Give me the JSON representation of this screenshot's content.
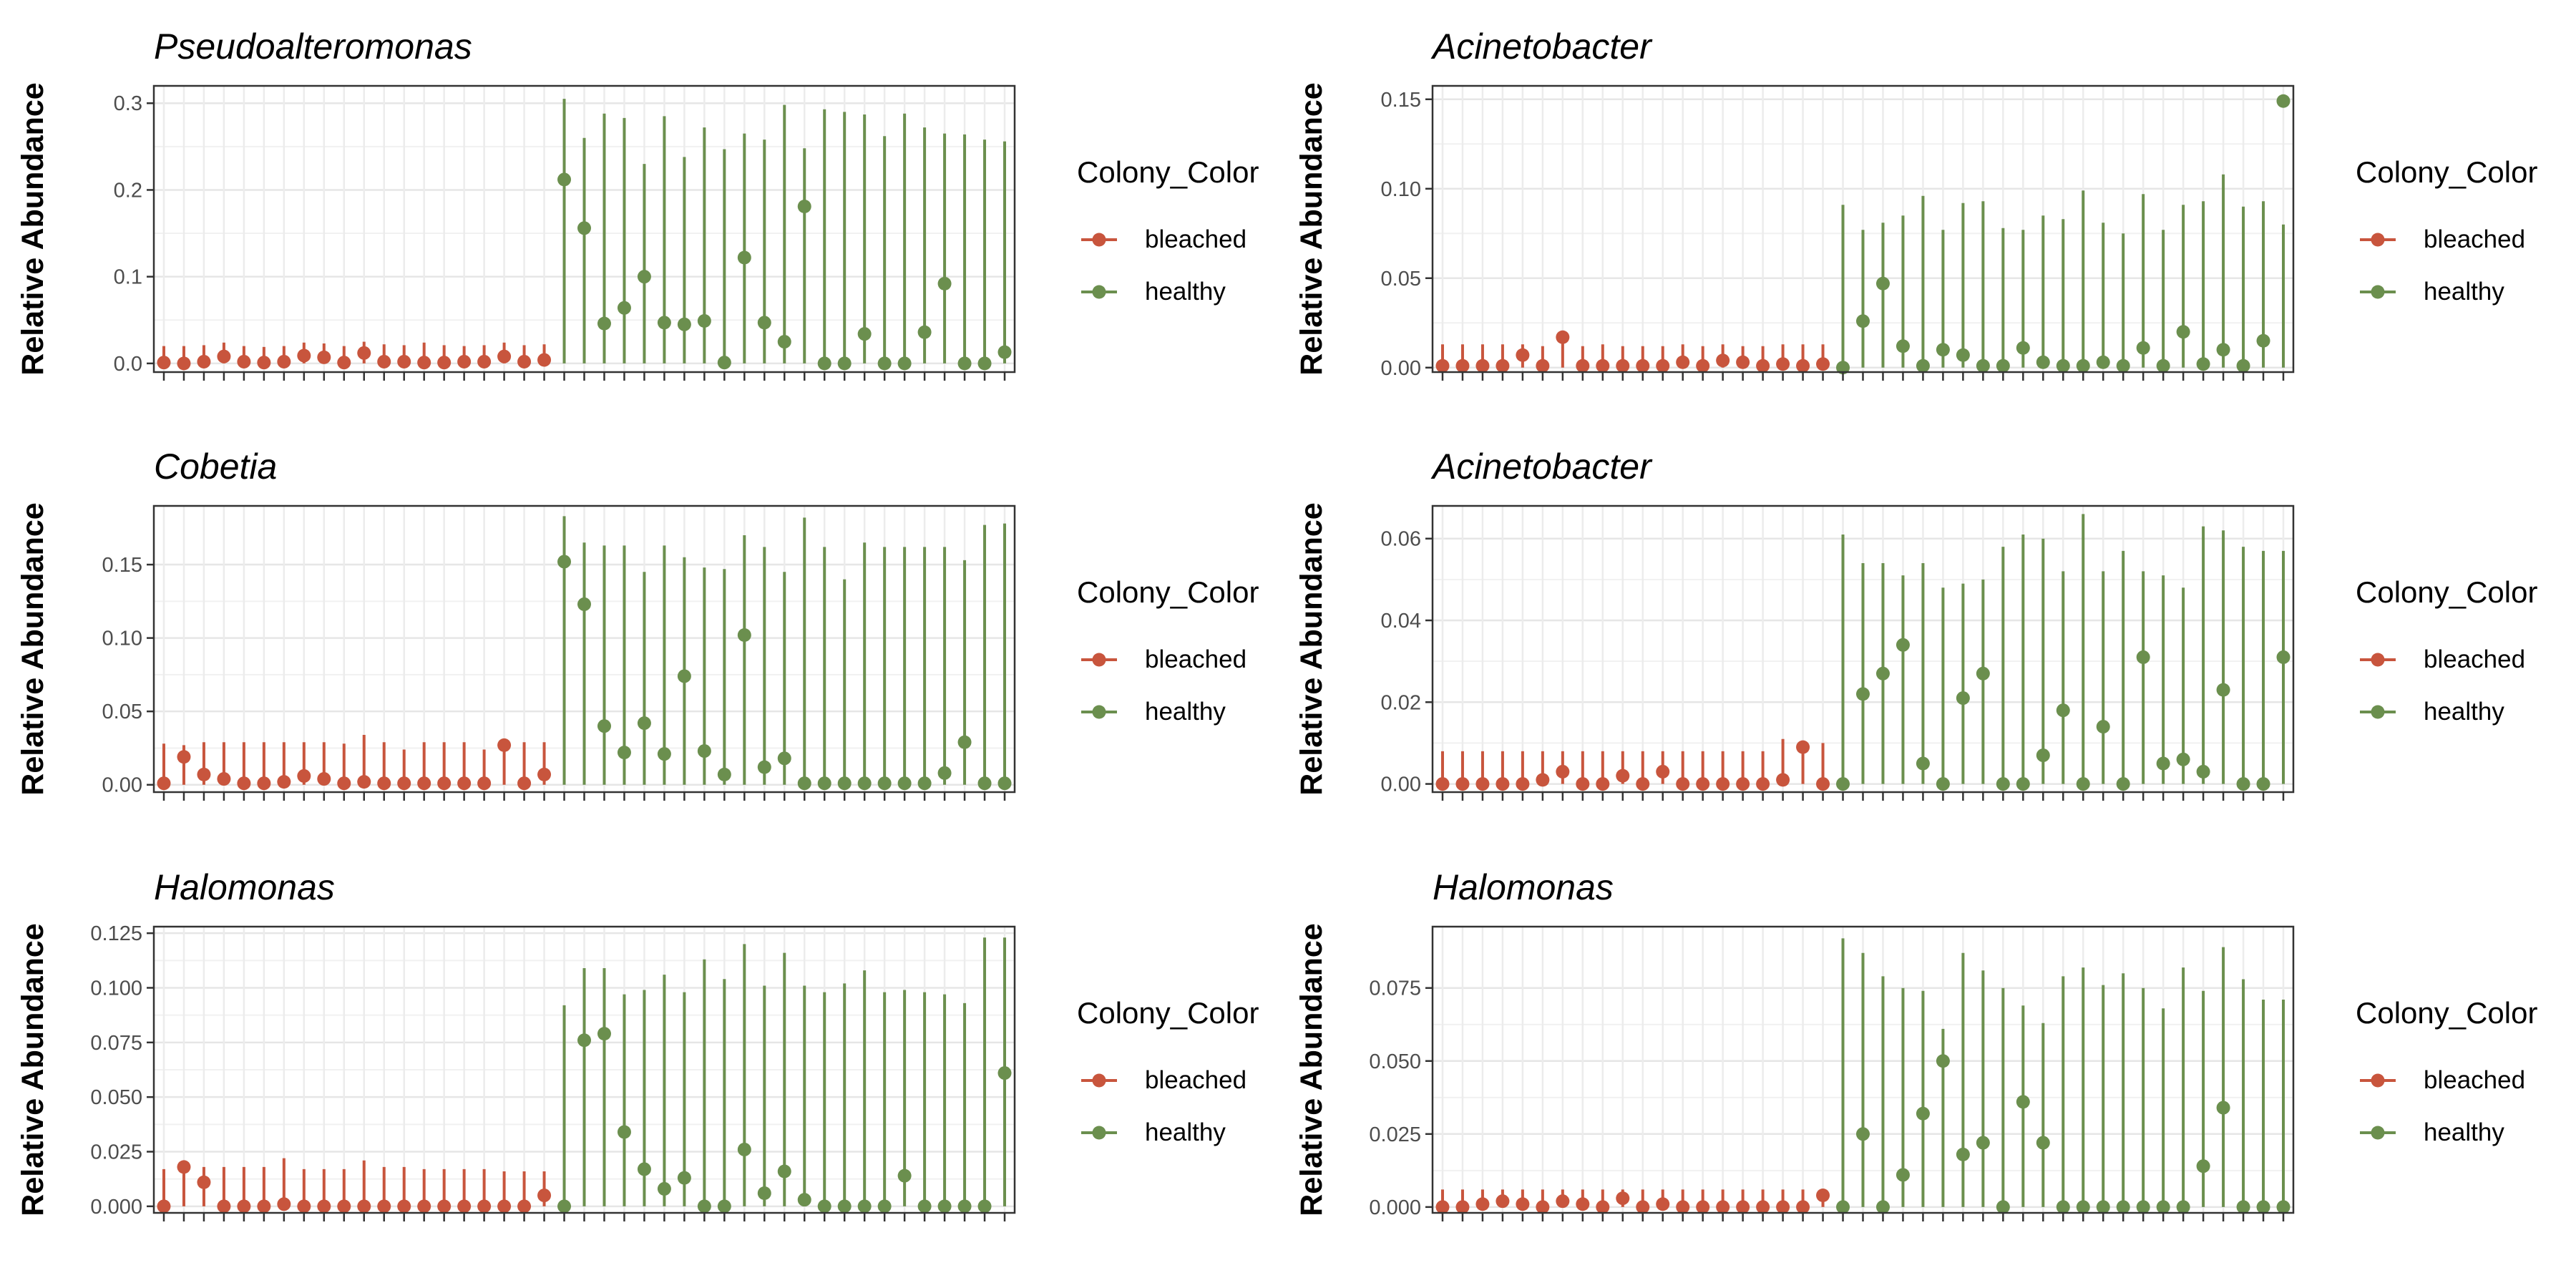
{
  "chart_data": [
    {
      "type": "scatter",
      "title": "Pseudoalteromonas",
      "xlabel": "",
      "ylabel": "Relative Abundance",
      "ylim": [
        -0.01,
        0.32
      ],
      "yticks": [
        0.0,
        0.1,
        0.2,
        0.3
      ],
      "ytick_labels": [
        "0.0",
        "0.1",
        "0.2",
        "0.3"
      ],
      "grid": true,
      "legend": {
        "title": "Colony_Color",
        "entries": [
          "bleached",
          "healthy"
        ],
        "placement": "right"
      },
      "series": [
        {
          "name": "bleached",
          "color": "#c8553d",
          "values": [
            0.001,
            0.0,
            0.002,
            0.008,
            0.002,
            0.001,
            0.002,
            0.009,
            0.007,
            0.001,
            0.012,
            0.002,
            0.002,
            0.001,
            0.001,
            0.002,
            0.002,
            0.008,
            0.002,
            0.004
          ],
          "upper": [
            0.02,
            0.02,
            0.021,
            0.024,
            0.02,
            0.019,
            0.02,
            0.024,
            0.023,
            0.02,
            0.025,
            0.022,
            0.021,
            0.024,
            0.021,
            0.02,
            0.021,
            0.024,
            0.021,
            0.022
          ]
        },
        {
          "name": "healthy",
          "color": "#6b8f4e",
          "values": [
            0.212,
            0.156,
            0.046,
            0.064,
            0.1,
            0.047,
            0.045,
            0.049,
            0.001,
            0.122,
            0.047,
            0.025,
            0.181,
            0.0,
            0.0,
            0.034,
            0.0,
            0.0,
            0.036,
            0.092,
            0.0,
            0.0,
            0.013
          ],
          "upper": [
            0.305,
            0.26,
            0.288,
            0.283,
            0.23,
            0.285,
            0.238,
            0.272,
            0.247,
            0.265,
            0.258,
            0.298,
            0.248,
            0.293,
            0.29,
            0.287,
            0.262,
            0.288,
            0.272,
            0.265,
            0.264,
            0.258,
            0.256
          ]
        }
      ]
    },
    {
      "type": "scatter",
      "title": "Acinetobacter",
      "xlabel": "",
      "ylabel": "Relative Abundance",
      "ylim": [
        -0.0025,
        0.1575
      ],
      "yticks": [
        0.0,
        0.05,
        0.1,
        0.15
      ],
      "ytick_labels": [
        "0.00",
        "0.05",
        "0.10",
        "0.15"
      ],
      "grid": true,
      "legend": {
        "title": "Colony_Color",
        "entries": [
          "bleached",
          "healthy"
        ],
        "placement": "right"
      },
      "series": [
        {
          "name": "bleached",
          "color": "#c8553d",
          "values": [
            0.001,
            0.001,
            0.001,
            0.001,
            0.007,
            0.001,
            0.017,
            0.001,
            0.001,
            0.001,
            0.001,
            0.001,
            0.003,
            0.001,
            0.004,
            0.003,
            0.001,
            0.002,
            0.001,
            0.002
          ],
          "upper": [
            0.013,
            0.013,
            0.013,
            0.013,
            0.013,
            0.012,
            0.017,
            0.012,
            0.013,
            0.012,
            0.012,
            0.012,
            0.013,
            0.012,
            0.013,
            0.012,
            0.012,
            0.013,
            0.013,
            0.013
          ]
        },
        {
          "name": "healthy",
          "color": "#6b8f4e",
          "values": [
            0.0,
            0.026,
            0.047,
            0.012,
            0.001,
            0.01,
            0.007,
            0.001,
            0.001,
            0.011,
            0.003,
            0.001,
            0.001,
            0.003,
            0.001,
            0.011,
            0.001,
            0.02,
            0.002,
            0.01,
            0.001,
            0.015,
            0.149
          ],
          "upper": [
            0.091,
            0.077,
            0.081,
            0.085,
            0.096,
            0.077,
            0.092,
            0.093,
            0.078,
            0.077,
            0.085,
            0.083,
            0.099,
            0.081,
            0.075,
            0.097,
            0.077,
            0.091,
            0.093,
            0.108,
            0.09,
            0.093,
            0.08
          ]
        }
      ]
    },
    {
      "type": "scatter",
      "title": "Cobetia",
      "xlabel": "",
      "ylabel": "Relative Abundance",
      "ylim": [
        -0.005,
        0.19
      ],
      "yticks": [
        0.0,
        0.05,
        0.1,
        0.15
      ],
      "ytick_labels": [
        "0.00",
        "0.05",
        "0.10",
        "0.15"
      ],
      "grid": true,
      "legend": {
        "title": "Colony_Color",
        "entries": [
          "bleached",
          "healthy"
        ],
        "placement": "right"
      },
      "series": [
        {
          "name": "bleached",
          "color": "#c8553d",
          "values": [
            0.001,
            0.019,
            0.007,
            0.004,
            0.001,
            0.001,
            0.002,
            0.006,
            0.004,
            0.001,
            0.002,
            0.001,
            0.001,
            0.001,
            0.001,
            0.001,
            0.001,
            0.027,
            0.001,
            0.007
          ],
          "upper": [
            0.028,
            0.027,
            0.029,
            0.029,
            0.029,
            0.029,
            0.029,
            0.029,
            0.029,
            0.028,
            0.034,
            0.029,
            0.024,
            0.029,
            0.029,
            0.029,
            0.024,
            0.029,
            0.029,
            0.029
          ]
        },
        {
          "name": "healthy",
          "color": "#6b8f4e",
          "values": [
            0.152,
            0.123,
            0.04,
            0.022,
            0.042,
            0.021,
            0.074,
            0.023,
            0.007,
            0.102,
            0.012,
            0.018,
            0.001,
            0.001,
            0.001,
            0.001,
            0.001,
            0.001,
            0.001,
            0.008,
            0.029,
            0.001,
            0.001
          ],
          "upper": [
            0.183,
            0.165,
            0.163,
            0.163,
            0.145,
            0.163,
            0.155,
            0.148,
            0.147,
            0.17,
            0.162,
            0.145,
            0.182,
            0.162,
            0.14,
            0.165,
            0.162,
            0.162,
            0.162,
            0.162,
            0.153,
            0.177,
            0.178
          ]
        }
      ]
    },
    {
      "type": "scatter",
      "title": "Acinetobacter",
      "xlabel": "",
      "ylabel": "Relative Abundance",
      "ylim": [
        -0.002,
        0.068
      ],
      "yticks": [
        0.0,
        0.02,
        0.04,
        0.06
      ],
      "ytick_labels": [
        "0.00",
        "0.02",
        "0.04",
        "0.06"
      ],
      "grid": true,
      "legend": {
        "title": "Colony_Color",
        "entries": [
          "bleached",
          "healthy"
        ],
        "placement": "right"
      },
      "series": [
        {
          "name": "bleached",
          "color": "#c8553d",
          "values": [
            0.0,
            0.0,
            0.0,
            0.0,
            0.0,
            0.001,
            0.003,
            0.0,
            0.0,
            0.002,
            0.0,
            0.003,
            0.0,
            0.0,
            0.0,
            0.0,
            0.0,
            0.001,
            0.009,
            0.0
          ],
          "upper": [
            0.008,
            0.008,
            0.008,
            0.008,
            0.008,
            0.008,
            0.008,
            0.008,
            0.008,
            0.008,
            0.008,
            0.008,
            0.008,
            0.008,
            0.008,
            0.008,
            0.008,
            0.011,
            0.01,
            0.01
          ]
        },
        {
          "name": "healthy",
          "color": "#6b8f4e",
          "values": [
            0.0,
            0.022,
            0.027,
            0.034,
            0.005,
            0.0,
            0.021,
            0.027,
            0.0,
            0.0,
            0.007,
            0.018,
            0.0,
            0.014,
            0.0,
            0.031,
            0.005,
            0.006,
            0.003,
            0.023,
            0.0,
            0.0,
            0.031
          ],
          "upper": [
            0.061,
            0.054,
            0.054,
            0.051,
            0.054,
            0.048,
            0.049,
            0.05,
            0.058,
            0.061,
            0.06,
            0.052,
            0.066,
            0.052,
            0.057,
            0.052,
            0.051,
            0.048,
            0.063,
            0.062,
            0.058,
            0.057,
            0.057
          ]
        }
      ]
    },
    {
      "type": "scatter",
      "title": "Halomonas",
      "xlabel": "",
      "ylabel": "Relative Abundance",
      "ylim": [
        -0.003,
        0.128
      ],
      "yticks": [
        0.0,
        0.025,
        0.05,
        0.075,
        0.1,
        0.125
      ],
      "ytick_labels": [
        "0.000",
        "0.025",
        "0.050",
        "0.075",
        "0.100",
        "0.125"
      ],
      "grid": true,
      "legend": {
        "title": "Colony_Color",
        "entries": [
          "bleached",
          "healthy"
        ],
        "placement": "right"
      },
      "series": [
        {
          "name": "bleached",
          "color": "#c8553d",
          "values": [
            0.0,
            0.018,
            0.011,
            0.0,
            0.0,
            0.0,
            0.001,
            0.0,
            0.0,
            0.0,
            0.0,
            0.0,
            0.0,
            0.0,
            0.0,
            0.0,
            0.0,
            0.0,
            0.0,
            0.005
          ],
          "upper": [
            0.017,
            0.018,
            0.018,
            0.018,
            0.018,
            0.018,
            0.022,
            0.017,
            0.017,
            0.017,
            0.021,
            0.018,
            0.018,
            0.017,
            0.017,
            0.017,
            0.017,
            0.016,
            0.016,
            0.016
          ]
        },
        {
          "name": "healthy",
          "color": "#6b8f4e",
          "values": [
            0.0,
            0.076,
            0.079,
            0.034,
            0.017,
            0.008,
            0.013,
            0.0,
            0.0,
            0.026,
            0.006,
            0.016,
            0.003,
            0.0,
            0.0,
            0.0,
            0.0,
            0.014,
            0.0,
            0.0,
            0.0,
            0.0,
            0.061
          ],
          "upper": [
            0.092,
            0.109,
            0.109,
            0.097,
            0.099,
            0.106,
            0.098,
            0.113,
            0.104,
            0.12,
            0.101,
            0.116,
            0.101,
            0.098,
            0.102,
            0.108,
            0.098,
            0.099,
            0.098,
            0.097,
            0.093,
            0.123,
            0.123
          ]
        }
      ]
    },
    {
      "type": "scatter",
      "title": "Halomonas",
      "xlabel": "",
      "ylabel": "Relative Abundance",
      "ylim": [
        -0.002,
        0.096
      ],
      "yticks": [
        0.0,
        0.025,
        0.05,
        0.075
      ],
      "ytick_labels": [
        "0.000",
        "0.025",
        "0.050",
        "0.075"
      ],
      "grid": true,
      "legend": {
        "title": "Colony_Color",
        "entries": [
          "bleached",
          "healthy"
        ],
        "placement": "right"
      },
      "series": [
        {
          "name": "bleached",
          "color": "#c8553d",
          "values": [
            0.0,
            0.0,
            0.001,
            0.002,
            0.001,
            0.0,
            0.002,
            0.001,
            0.0,
            0.003,
            0.0,
            0.001,
            0.0,
            0.0,
            0.0,
            0.0,
            0.0,
            0.0,
            0.0,
            0.004
          ],
          "upper": [
            0.006,
            0.006,
            0.006,
            0.006,
            0.006,
            0.006,
            0.006,
            0.006,
            0.006,
            0.006,
            0.006,
            0.006,
            0.006,
            0.006,
            0.006,
            0.006,
            0.006,
            0.006,
            0.006,
            0.006
          ]
        },
        {
          "name": "healthy",
          "color": "#6b8f4e",
          "values": [
            0.0,
            0.025,
            0.0,
            0.011,
            0.032,
            0.05,
            0.018,
            0.022,
            0.0,
            0.036,
            0.022,
            0.0,
            0.0,
            0.0,
            0.0,
            0.0,
            0.0,
            0.0,
            0.014,
            0.034,
            0.0,
            0.0,
            0.0
          ],
          "upper": [
            0.092,
            0.087,
            0.079,
            0.075,
            0.074,
            0.061,
            0.087,
            0.081,
            0.075,
            0.069,
            0.063,
            0.079,
            0.082,
            0.076,
            0.08,
            0.075,
            0.068,
            0.082,
            0.074,
            0.089,
            0.078,
            0.071,
            0.071
          ]
        }
      ]
    }
  ]
}
